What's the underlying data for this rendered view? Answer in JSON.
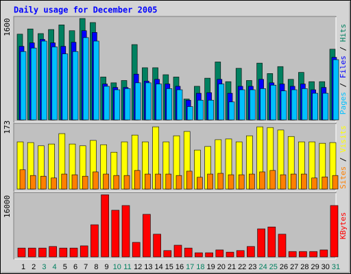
{
  "chart_data": [
    {
      "type": "bar",
      "title": "Daily usage for December 2005",
      "series": [
        {
          "name": "Hits",
          "color": "#008060",
          "values": [
            1480,
            1570,
            1490,
            1560,
            1640,
            1540,
            1750,
            1680,
            740,
            640,
            680,
            1300,
            900,
            900,
            780,
            740,
            360,
            580,
            720,
            1000,
            660,
            890,
            680,
            980,
            800,
            920,
            700,
            820,
            660,
            660,
            1220
          ]
        },
        {
          "name": "Files",
          "color": "#0000ff",
          "values": [
            1270,
            1330,
            1390,
            1330,
            1270,
            1340,
            1540,
            1510,
            620,
            560,
            560,
            790,
            670,
            700,
            620,
            580,
            340,
            460,
            470,
            700,
            460,
            580,
            580,
            700,
            640,
            620,
            580,
            620,
            520,
            560,
            1080
          ]
        },
        {
          "name": "Pages",
          "color": "#00c0ff",
          "values": [
            1180,
            1240,
            1360,
            1260,
            1140,
            1180,
            1420,
            1360,
            580,
            520,
            540,
            640,
            640,
            620,
            540,
            520,
            230,
            340,
            340,
            620,
            310,
            520,
            520,
            540,
            600,
            500,
            520,
            540,
            460,
            460,
            1040
          ]
        }
      ],
      "ylim": [
        0,
        1750
      ],
      "yticks": [
        1600
      ],
      "legend_separator": " / "
    },
    {
      "type": "bar",
      "series": [
        {
          "name": "Visits",
          "color": "#ffff00",
          "values": [
            132,
            130,
            121,
            126,
            155,
            126,
            121,
            136,
            124,
            103,
            132,
            151,
            132,
            174,
            132,
            149,
            161,
            109,
            119,
            138,
            140,
            132,
            149,
            174,
            172,
            165,
            147,
            132,
            132,
            128,
            130
          ]
        },
        {
          "name": "Sites",
          "color": "#ff8000",
          "values": [
            54,
            38,
            36,
            31,
            42,
            40,
            36,
            48,
            42,
            38,
            38,
            52,
            42,
            42,
            42,
            38,
            50,
            33,
            42,
            44,
            40,
            40,
            42,
            48,
            52,
            40,
            42,
            42,
            31,
            34,
            38
          ]
        }
      ],
      "ylim": [
        0,
        180
      ],
      "yticks": [
        173
      ],
      "legend_separator": " / "
    },
    {
      "type": "bar",
      "series": [
        {
          "name": "KBytes",
          "color": "#ff0000",
          "values": [
            2800,
            2800,
            2800,
            3300,
            2800,
            2800,
            3500,
            10200,
            19700,
            14800,
            16300,
            4600,
            13500,
            7200,
            2000,
            3700,
            2800,
            1300,
            1300,
            2200,
            1500,
            2000,
            3300,
            8900,
            9500,
            7200,
            1700,
            1700,
            1700,
            2200,
            16300
          ]
        }
      ],
      "ylim": [
        0,
        20000
      ],
      "yticks": [
        16000
      ],
      "categories": [
        "1",
        "2",
        "3",
        "4",
        "5",
        "6",
        "7",
        "8",
        "9",
        "10",
        "11",
        "12",
        "13",
        "14",
        "15",
        "16",
        "17",
        "18",
        "19",
        "20",
        "21",
        "22",
        "23",
        "24",
        "25",
        "26",
        "27",
        "28",
        "29",
        "30",
        "31"
      ],
      "category_colors": [
        "#000000",
        "#000000",
        "#008060",
        "#008060",
        "#000000",
        "#000000",
        "#000000",
        "#000000",
        "#000000",
        "#008060",
        "#008060",
        "#000000",
        "#000000",
        "#000000",
        "#000000",
        "#000000",
        "#008060",
        "#008060",
        "#000000",
        "#000000",
        "#000000",
        "#000000",
        "#000000",
        "#008060",
        "#008060",
        "#000000",
        "#000000",
        "#000000",
        "#000000",
        "#000000",
        "#008060"
      ]
    }
  ]
}
